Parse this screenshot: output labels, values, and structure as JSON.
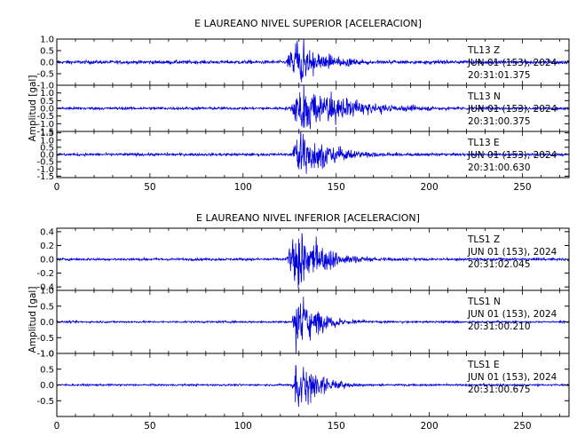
{
  "chart_data": [
    {
      "type": "line",
      "title": "E LAUREANO NIVEL SUPERIOR [ACELERACION]",
      "ylabel": "Amplitud [gal]",
      "xlim": [
        0,
        275
      ],
      "x_ticks": [
        0,
        50,
        100,
        150,
        200,
        250
      ],
      "line_color": "#0000dd",
      "traces": [
        {
          "name": "TL13 Z",
          "station": "TL13",
          "component": "Z",
          "date": "JUN 01 (153), 2024",
          "time": "20:31:01.375",
          "ylim": [
            -1.0,
            1.0
          ],
          "y_ticks": [
            "1.0",
            "0.5",
            "0.0",
            "-0.5",
            "-1.0"
          ],
          "y_tick_values": [
            1.0,
            0.5,
            0.0,
            -0.5,
            -1.0
          ],
          "onset": 123,
          "peak_time": 128,
          "peak_amp": 0.9,
          "decay": 14,
          "noise": 0.05
        },
        {
          "name": "TL13 N",
          "station": "TL13",
          "component": "N",
          "date": "JUN 01 (153), 2024",
          "time": "20:31:00.375",
          "ylim": [
            -1.5,
            1.5
          ],
          "y_ticks": [
            "1.0",
            "0.5",
            "0.0",
            "-0.5",
            "-1.0",
            "-1.5"
          ],
          "y_tick_values": [
            1.0,
            0.5,
            0.0,
            -0.5,
            -1.0,
            -1.5
          ],
          "onset": 125,
          "peak_time": 131,
          "peak_amp": 1.4,
          "decay": 24,
          "noise": 0.06
        },
        {
          "name": "TL13 E",
          "station": "TL13",
          "component": "E",
          "date": "JUN 01 (153), 2024",
          "time": "20:31:00.630",
          "ylim": [
            -1.6,
            1.6
          ],
          "y_ticks": [
            "1.5",
            "1.0",
            "0.5",
            "0.0",
            "-0.5",
            "-1.0",
            "-1.5"
          ],
          "y_tick_values": [
            1.5,
            1.0,
            0.5,
            0.0,
            -0.5,
            -1.0,
            -1.5
          ],
          "onset": 126,
          "peak_time": 130,
          "peak_amp": 1.5,
          "decay": 16,
          "noise": 0.06
        }
      ],
      "x_tick_labels": [
        "0",
        "50",
        "100",
        "150",
        "200",
        "250"
      ]
    },
    {
      "type": "line",
      "title": "E LAUREANO NIVEL INFERIOR [ACELERACION]",
      "ylabel": "Amplitud [gal]",
      "xlim": [
        0,
        275
      ],
      "x_ticks": [
        0,
        50,
        100,
        150,
        200,
        250
      ],
      "line_color": "#0000dd",
      "traces": [
        {
          "name": "TLS1 Z",
          "station": "TLS1",
          "component": "Z",
          "date": "JUN 01 (153), 2024",
          "time": "20:31:02.045",
          "ylim": [
            -0.45,
            0.45
          ],
          "y_ticks": [
            "0.4",
            "0.2",
            "0.0",
            "-0.2",
            "-0.4"
          ],
          "y_tick_values": [
            0.4,
            0.2,
            0.0,
            -0.2,
            -0.4
          ],
          "onset": 123,
          "peak_time": 129,
          "peak_amp": 0.4,
          "decay": 14,
          "noise": 0.012
        },
        {
          "name": "TLS1 N",
          "station": "TLS1",
          "component": "N",
          "date": "JUN 01 (153), 2024",
          "time": "20:31:00.210",
          "ylim": [
            -1.0,
            1.0
          ],
          "y_ticks": [
            "1.0",
            "0.5",
            "0.0",
            "-0.5",
            "-1.0"
          ],
          "y_tick_values": [
            1.0,
            0.5,
            0.0,
            -0.5,
            -1.0
          ],
          "onset": 126,
          "peak_time": 129,
          "peak_amp": 0.75,
          "decay": 12,
          "noise": 0.02
        },
        {
          "name": "TLS1 E",
          "station": "TLS1",
          "component": "E",
          "date": "JUN 01 (153), 2024",
          "time": "20:31:00.675",
          "ylim": [
            -1.0,
            1.0
          ],
          "y_ticks": [
            "1.0",
            "0.5",
            "0.0",
            "-0.5"
          ],
          "y_tick_values": [
            1.0,
            0.5,
            0.0,
            -0.5
          ],
          "onset": 126,
          "peak_time": 129,
          "peak_amp": 0.8,
          "decay": 11,
          "noise": 0.02
        }
      ],
      "x_tick_labels": [
        "0",
        "50",
        "100",
        "150",
        "200",
        "250"
      ]
    }
  ]
}
